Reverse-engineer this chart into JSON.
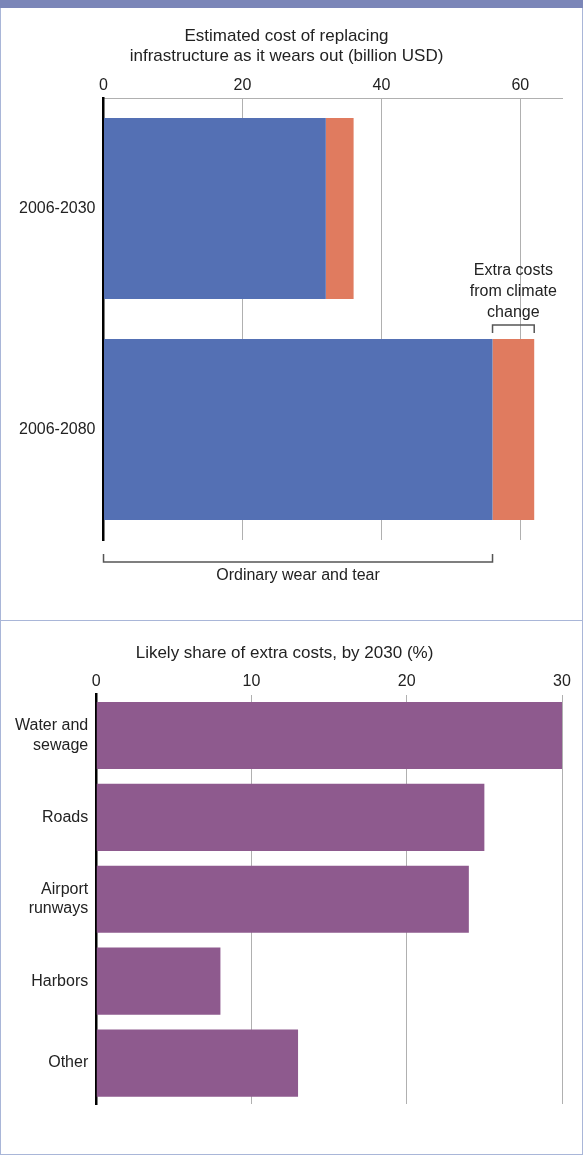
{
  "chart_data": [
    {
      "type": "bar",
      "orientation": "horizontal",
      "stacked": true,
      "title": "Estimated cost of replacing\ninfrastructure as it wears out (billion USD)",
      "categories": [
        "2006-2030",
        "2006-2080"
      ],
      "series": [
        {
          "color": "#5470b4",
          "values": [
            32,
            56
          ]
        },
        {
          "color": "#e07b5f",
          "values": [
            4,
            6
          ]
        }
      ],
      "xlim": [
        0,
        66
      ],
      "xticks": [
        0,
        20,
        40,
        60
      ],
      "grid": "x",
      "legend": false,
      "annotations": [
        "Extra costs from climate change",
        "Ordinary wear and tear"
      ]
    },
    {
      "type": "bar",
      "orientation": "horizontal",
      "title": "Likely share of extra costs, by 2030 (%)",
      "categories": [
        "Water and\nsewage",
        "Roads",
        "Airport\nrunways",
        "Harbors",
        "Other"
      ],
      "values": [
        30,
        25,
        24,
        8,
        13
      ],
      "color": "#8e5a8e",
      "xlim": [
        0,
        30
      ],
      "xticks": [
        0,
        10,
        20,
        30
      ],
      "grid": "x",
      "legend": false
    }
  ]
}
